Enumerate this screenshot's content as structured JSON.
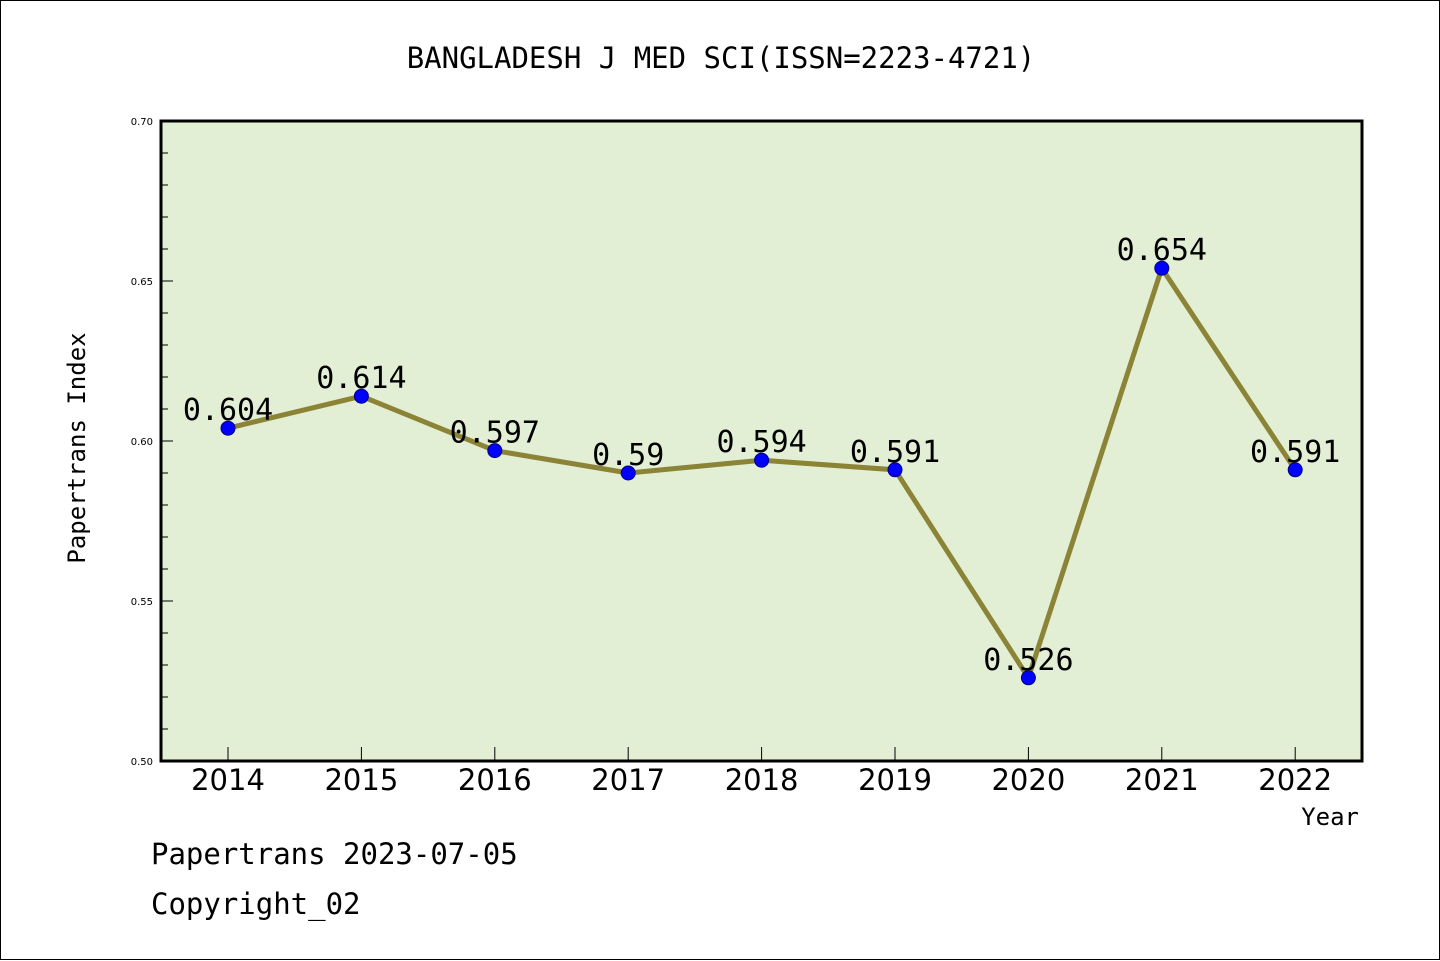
{
  "chart_data": {
    "type": "line",
    "title": "BANGLADESH J MED SCI(ISSN=2223-4721)",
    "xlabel": "Year",
    "ylabel": "Papertrans Index",
    "x": [
      "2014",
      "2015",
      "2016",
      "2017",
      "2018",
      "2019",
      "2020",
      "2021",
      "2022"
    ],
    "series": [
      {
        "values": [
          0.604,
          0.614,
          0.597,
          0.59,
          0.594,
          0.591,
          0.526,
          0.654,
          0.591
        ],
        "labels": [
          "0.604",
          "0.614",
          "0.597",
          "0.59",
          "0.594",
          "0.591",
          "0.526",
          "0.654",
          "0.591"
        ]
      }
    ],
    "ylim": [
      0.5,
      0.7
    ],
    "yticks": [
      0.5,
      0.55,
      0.6,
      0.65,
      0.7
    ],
    "ytick_labels": [
      "0.50",
      "0.55",
      "0.60",
      "0.65",
      "0.70"
    ],
    "grid": false,
    "plot_background": "#e2efd4",
    "line_color": "#8b8335",
    "marker_color": "#0000ff"
  },
  "footer": {
    "date_line": "Papertrans 2023-07-05",
    "copyright_line": "Copyright_02"
  }
}
